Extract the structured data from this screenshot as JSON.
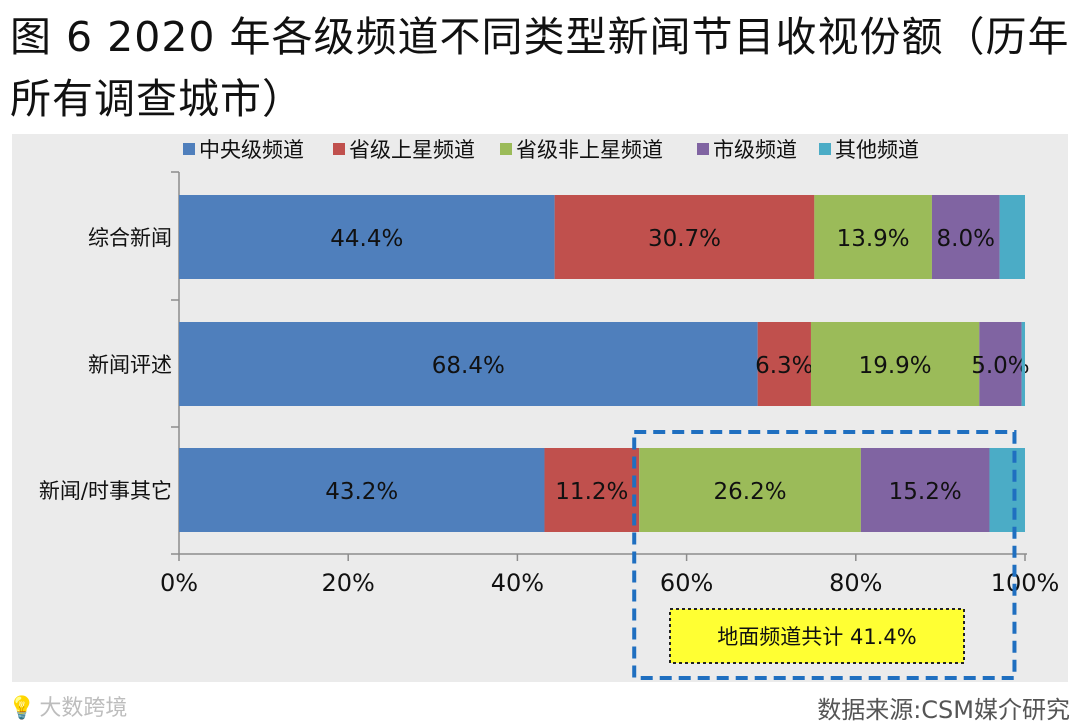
{
  "title": "图 6 2020 年各级频道不同类型新闻节目收视份额（历年所有调查城市）",
  "chart_data": {
    "type": "bar",
    "orientation": "horizontal",
    "stacked": true,
    "categories": [
      "综合新闻",
      "新闻评述",
      "新闻/时事其它"
    ],
    "series": [
      {
        "name": "中央级频道",
        "color": "#4f7fbc",
        "values": [
          44.4,
          68.4,
          43.2
        ],
        "labels": [
          "44.4%",
          "68.4%",
          "43.2%"
        ]
      },
      {
        "name": "省级上星频道",
        "color": "#c0504d",
        "values": [
          30.7,
          6.3,
          11.2
        ],
        "labels": [
          "30.7%",
          "6.3%",
          "11.2%"
        ]
      },
      {
        "name": "省级非上星频道",
        "color": "#9bbb59",
        "values": [
          13.9,
          19.9,
          26.2
        ],
        "labels": [
          "13.9%",
          "19.9%",
          "26.2%"
        ]
      },
      {
        "name": "市级频道",
        "color": "#8064a2",
        "values": [
          8.0,
          5.0,
          15.2
        ],
        "labels": [
          "8.0%",
          "5.0%",
          "15.2%"
        ]
      },
      {
        "name": "其他频道",
        "color": "#4bacc6",
        "values": [
          3.0,
          0.4,
          4.2
        ],
        "labels": [
          "",
          "",
          ""
        ]
      }
    ],
    "xlim": [
      0,
      100
    ],
    "xticks": [
      "0%",
      "20%",
      "40%",
      "60%",
      "80%",
      "100%"
    ],
    "legend": "top",
    "grid": false,
    "annotation": {
      "text": "地面频道共计  41.4%",
      "highlight_from": 54.4,
      "highlight_to": 95.8,
      "row_index": 2
    }
  },
  "footer": {
    "logo_text": "大数跨境",
    "source": "数据来源:CSM媒介研究"
  }
}
